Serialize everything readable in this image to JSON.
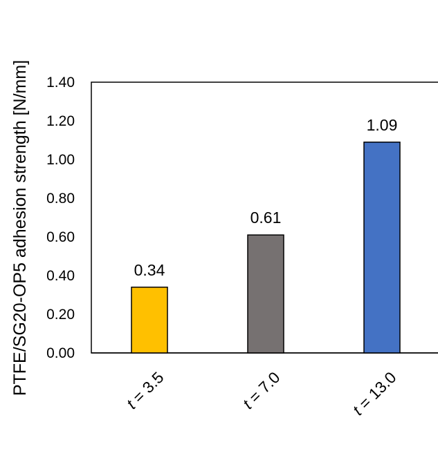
{
  "chart_data": {
    "type": "bar",
    "ylabel": "PTFE/SG20-OP5 adhesion strength [N/mm]",
    "xlabel": "",
    "categories": [
      {
        "var": "t",
        "rest": " = 3.5"
      },
      {
        "var": "t",
        "rest": " = 7.0"
      },
      {
        "var": "t",
        "rest": " = 13.0"
      }
    ],
    "values": [
      0.34,
      0.61,
      1.09
    ],
    "data_labels": [
      "0.34",
      "0.61",
      "1.09"
    ],
    "colors": [
      "#FFC000",
      "#767171",
      "#4472C4"
    ],
    "ylim": [
      0,
      1.4
    ],
    "yticks": [
      {
        "v": 0.0,
        "label": "0.00"
      },
      {
        "v": 0.2,
        "label": "0.20"
      },
      {
        "v": 0.4,
        "label": "0.40"
      },
      {
        "v": 0.6,
        "label": "0.60"
      },
      {
        "v": 0.8,
        "label": "0.80"
      },
      {
        "v": 1.0,
        "label": "1.00"
      },
      {
        "v": 1.2,
        "label": "1.20"
      },
      {
        "v": 1.4,
        "label": "1.40"
      }
    ],
    "grid": false,
    "legend": "none"
  }
}
